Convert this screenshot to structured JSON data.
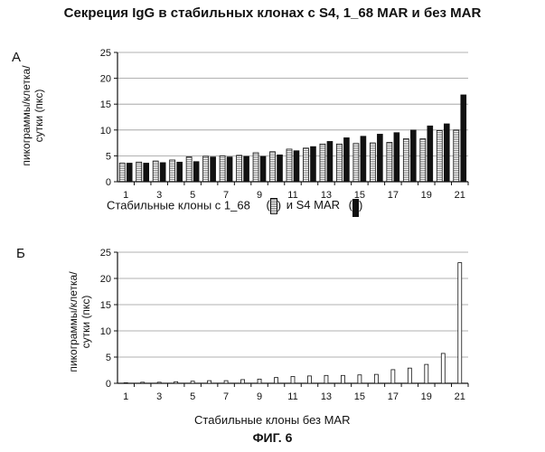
{
  "title": "Секреция IgG в стабильных клонах с S4, 1_68 MAR и без MAR",
  "figure_caption": "ФИГ. 6",
  "chart_data": [
    {
      "panel": "А",
      "type": "bar",
      "ylabel_lines": [
        "пикограммы/клетка/",
        "сутки  (пкс)"
      ],
      "xlabel_prefix": "Стабильные клоны с 1_68",
      "xlabel_mid": "и S4 MAR",
      "legend_paren_open": "(",
      "legend_paren_close": ")",
      "ylim": [
        0,
        25
      ],
      "yticks": [
        "0",
        "5",
        "10",
        "15",
        "20",
        "25"
      ],
      "grid": true,
      "categories": [
        "1",
        "2",
        "3",
        "4",
        "5",
        "6",
        "7",
        "8",
        "9",
        "10",
        "11",
        "12",
        "13",
        "14",
        "15",
        "16",
        "17",
        "18",
        "19",
        "20",
        "21"
      ],
      "xtick_labels": [
        "1",
        "3",
        "5",
        "7",
        "9",
        "11",
        "13",
        "15",
        "17",
        "19",
        "21"
      ],
      "series": [
        {
          "name": "1_68",
          "values": [
            3.6,
            3.8,
            4.0,
            4.2,
            4.8,
            4.9,
            5.0,
            5.1,
            5.6,
            5.8,
            6.3,
            6.5,
            7.3,
            7.3,
            7.4,
            7.5,
            7.6,
            8.3,
            8.3,
            9.9,
            10.0
          ]
        },
        {
          "name": "S4 MAR",
          "values": [
            3.6,
            3.6,
            3.7,
            3.8,
            3.9,
            4.8,
            4.8,
            4.9,
            4.9,
            5.2,
            6.0,
            6.8,
            7.8,
            8.5,
            8.8,
            9.2,
            9.5,
            10.0,
            10.8,
            11.2,
            16.8
          ]
        }
      ],
      "colors": {
        "series1_fill": "#d0d0d0",
        "series2_fill": "#111111"
      }
    },
    {
      "panel": "Б",
      "type": "bar",
      "ylabel_lines": [
        "пикограммы/клетка/",
        "сутки  (пкс)"
      ],
      "xlabel": "Стабильные клоны без MAR",
      "ylim": [
        0,
        25
      ],
      "yticks": [
        "0",
        "5",
        "10",
        "15",
        "20",
        "25"
      ],
      "grid": true,
      "categories": [
        "1",
        "2",
        "3",
        "4",
        "5",
        "6",
        "7",
        "8",
        "9",
        "10",
        "11",
        "12",
        "13",
        "14",
        "15",
        "16",
        "17",
        "18",
        "19",
        "20",
        "21"
      ],
      "xtick_labels": [
        "1",
        "3",
        "5",
        "7",
        "9",
        "11",
        "13",
        "15",
        "17",
        "19",
        "21"
      ],
      "series": [
        {
          "name": "",
          "values": [
            0.1,
            0.2,
            0.2,
            0.3,
            0.4,
            0.5,
            0.5,
            0.7,
            0.8,
            1.1,
            1.3,
            1.4,
            1.5,
            1.5,
            1.6,
            1.7,
            2.6,
            2.9,
            3.6,
            5.7,
            23.0
          ]
        }
      ],
      "colors": {
        "series1_fill": "#ffffff"
      }
    }
  ]
}
